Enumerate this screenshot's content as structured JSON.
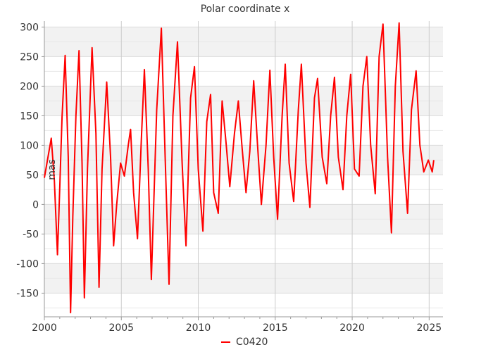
{
  "chart_data": {
    "type": "line",
    "title": "Polar coordinate x",
    "xlabel": "",
    "ylabel": "mas",
    "xlim": [
      2000,
      2025.9
    ],
    "ylim": [
      -190,
      310
    ],
    "x_ticks": [
      2000,
      2005,
      2010,
      2015,
      2020,
      2025
    ],
    "y_ticks": [
      -150,
      -100,
      -50,
      0,
      50,
      100,
      150,
      200,
      250,
      300
    ],
    "grid": true,
    "legend_position": "bottom-center",
    "series": [
      {
        "name": "C0420",
        "color": "#ff0000",
        "x": [
          2000.0,
          2000.2,
          2000.45,
          2000.65,
          2000.85,
          2001.0,
          2001.15,
          2001.35,
          2001.55,
          2001.7,
          2001.85,
          2002.05,
          2002.25,
          2002.45,
          2002.6,
          2002.8,
          2003.1,
          2003.35,
          2003.55,
          2003.75,
          2004.05,
          2004.3,
          2004.5,
          2004.7,
          2004.95,
          2005.2,
          2005.45,
          2005.6,
          2005.8,
          2006.05,
          2006.3,
          2006.5,
          2006.75,
          2006.95,
          2007.3,
          2007.6,
          2007.85,
          2008.1,
          2008.35,
          2008.65,
          2008.95,
          2009.2,
          2009.5,
          2009.75,
          2010.0,
          2010.3,
          2010.55,
          2010.8,
          2011.0,
          2011.3,
          2011.55,
          2011.8,
          2012.05,
          2012.35,
          2012.6,
          2012.85,
          2013.1,
          2013.35,
          2013.6,
          2013.85,
          2014.1,
          2014.4,
          2014.65,
          2014.9,
          2015.15,
          2015.45,
          2015.65,
          2015.9,
          2016.2,
          2016.5,
          2016.7,
          2017.0,
          2017.25,
          2017.55,
          2017.75,
          2018.05,
          2018.35,
          2018.6,
          2018.85,
          2019.1,
          2019.4,
          2019.65,
          2019.9,
          2020.15,
          2020.45,
          2020.7,
          2020.95,
          2021.2,
          2021.5,
          2021.75,
          2022.0,
          2022.3,
          2022.55,
          2022.8,
          2023.05,
          2023.3,
          2023.6,
          2023.85,
          2024.15,
          2024.4,
          2024.65,
          2024.95,
          2025.2,
          2025.3
        ],
        "y": [
          45,
          75,
          112,
          40,
          -85,
          30,
          148,
          252,
          80,
          -183,
          -20,
          150,
          260,
          70,
          -158,
          60,
          265,
          120,
          -140,
          60,
          207,
          80,
          -70,
          0,
          70,
          48,
          100,
          127,
          20,
          -58,
          110,
          228,
          60,
          -127,
          160,
          298,
          80,
          -135,
          150,
          275,
          70,
          -70,
          180,
          233,
          60,
          -45,
          140,
          186,
          20,
          -15,
          175,
          105,
          30,
          120,
          175,
          95,
          20,
          90,
          209,
          100,
          0,
          100,
          227,
          80,
          -25,
          150,
          237,
          70,
          5,
          160,
          237,
          70,
          -5,
          180,
          213,
          80,
          35,
          150,
          215,
          80,
          25,
          150,
          220,
          60,
          48,
          200,
          250,
          100,
          18,
          250,
          305,
          80,
          -48,
          200,
          307,
          90,
          -15,
          160,
          226,
          100,
          55,
          75,
          55,
          75
        ]
      }
    ]
  }
}
